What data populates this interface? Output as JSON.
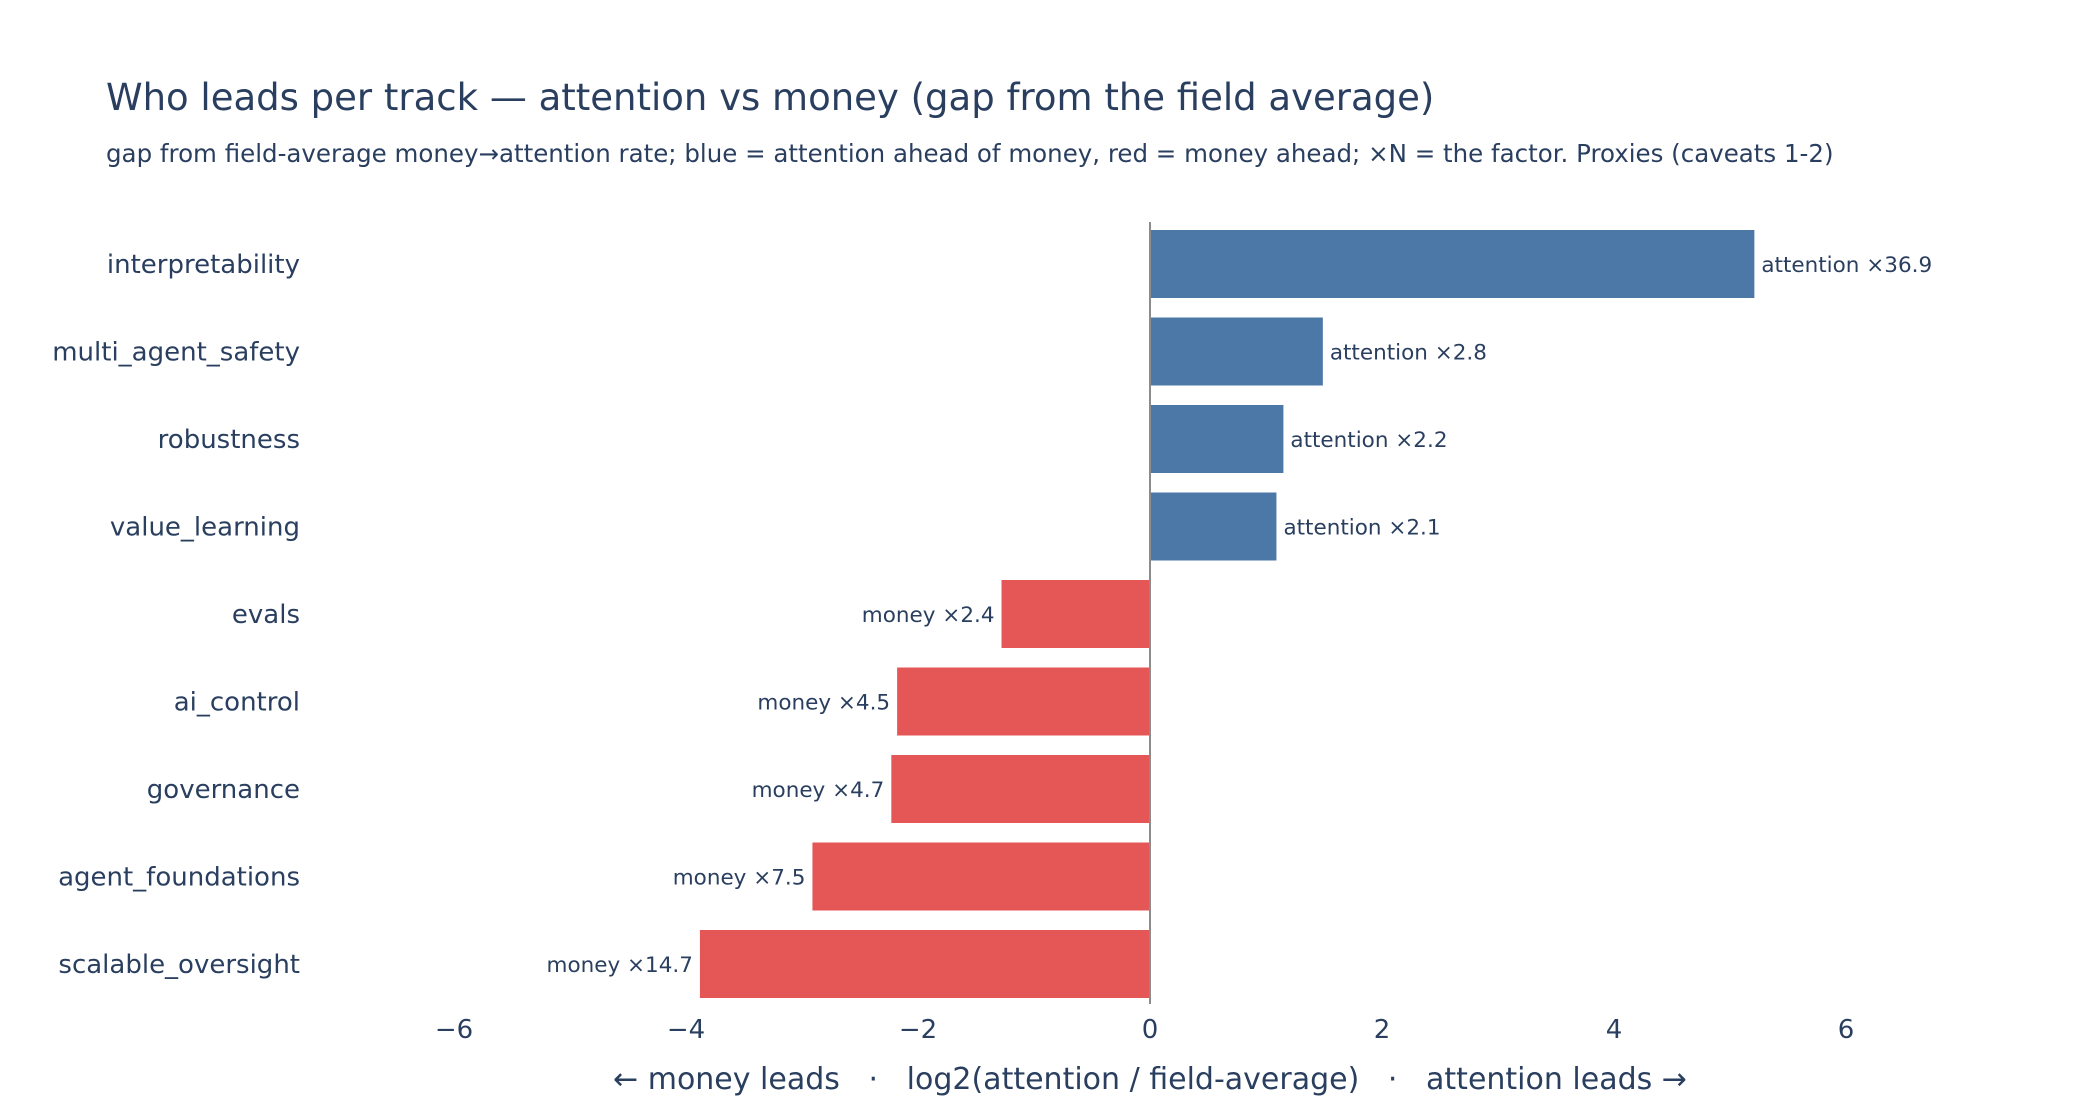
{
  "chart_data": {
    "type": "bar",
    "orientation": "horizontal",
    "title": "Who leads per track — attention vs money (gap from the field average)",
    "subtitle": "gap from field-average money→attention rate; blue = attention ahead of money, red = money ahead; ×N = the factor. Proxies (caveats 1-2)",
    "xlabel": "← money leads   ·   log2(attention / field-average)   ·   attention leads →",
    "xlim": [
      -6.1,
      7.4
    ],
    "xticks": [
      -6,
      -4,
      -2,
      0,
      2,
      4,
      6
    ],
    "xtick_labels": [
      "−6",
      "−4",
      "−2",
      "0",
      "2",
      "4",
      "6"
    ],
    "grid": false,
    "colors": {
      "attention": "#4c78a8",
      "money": "#e45756",
      "zeroline": "#8c8c8c",
      "text": "#2a3f5f"
    },
    "categories": [
      "interpretability",
      "multi_agent_safety",
      "robustness",
      "value_learning",
      "evals",
      "ai_control",
      "governance",
      "agent_foundations",
      "scalable_oversight"
    ],
    "values": [
      5.21,
      1.49,
      1.15,
      1.09,
      -1.28,
      -2.18,
      -2.23,
      -2.91,
      -3.88
    ],
    "data_labels": [
      "attention ×36.9",
      "attention ×2.8",
      "attention ×2.2",
      "attention ×2.1",
      "money ×2.4",
      "money ×4.5",
      "money ×4.7",
      "money ×7.5",
      "money ×14.7"
    ]
  }
}
